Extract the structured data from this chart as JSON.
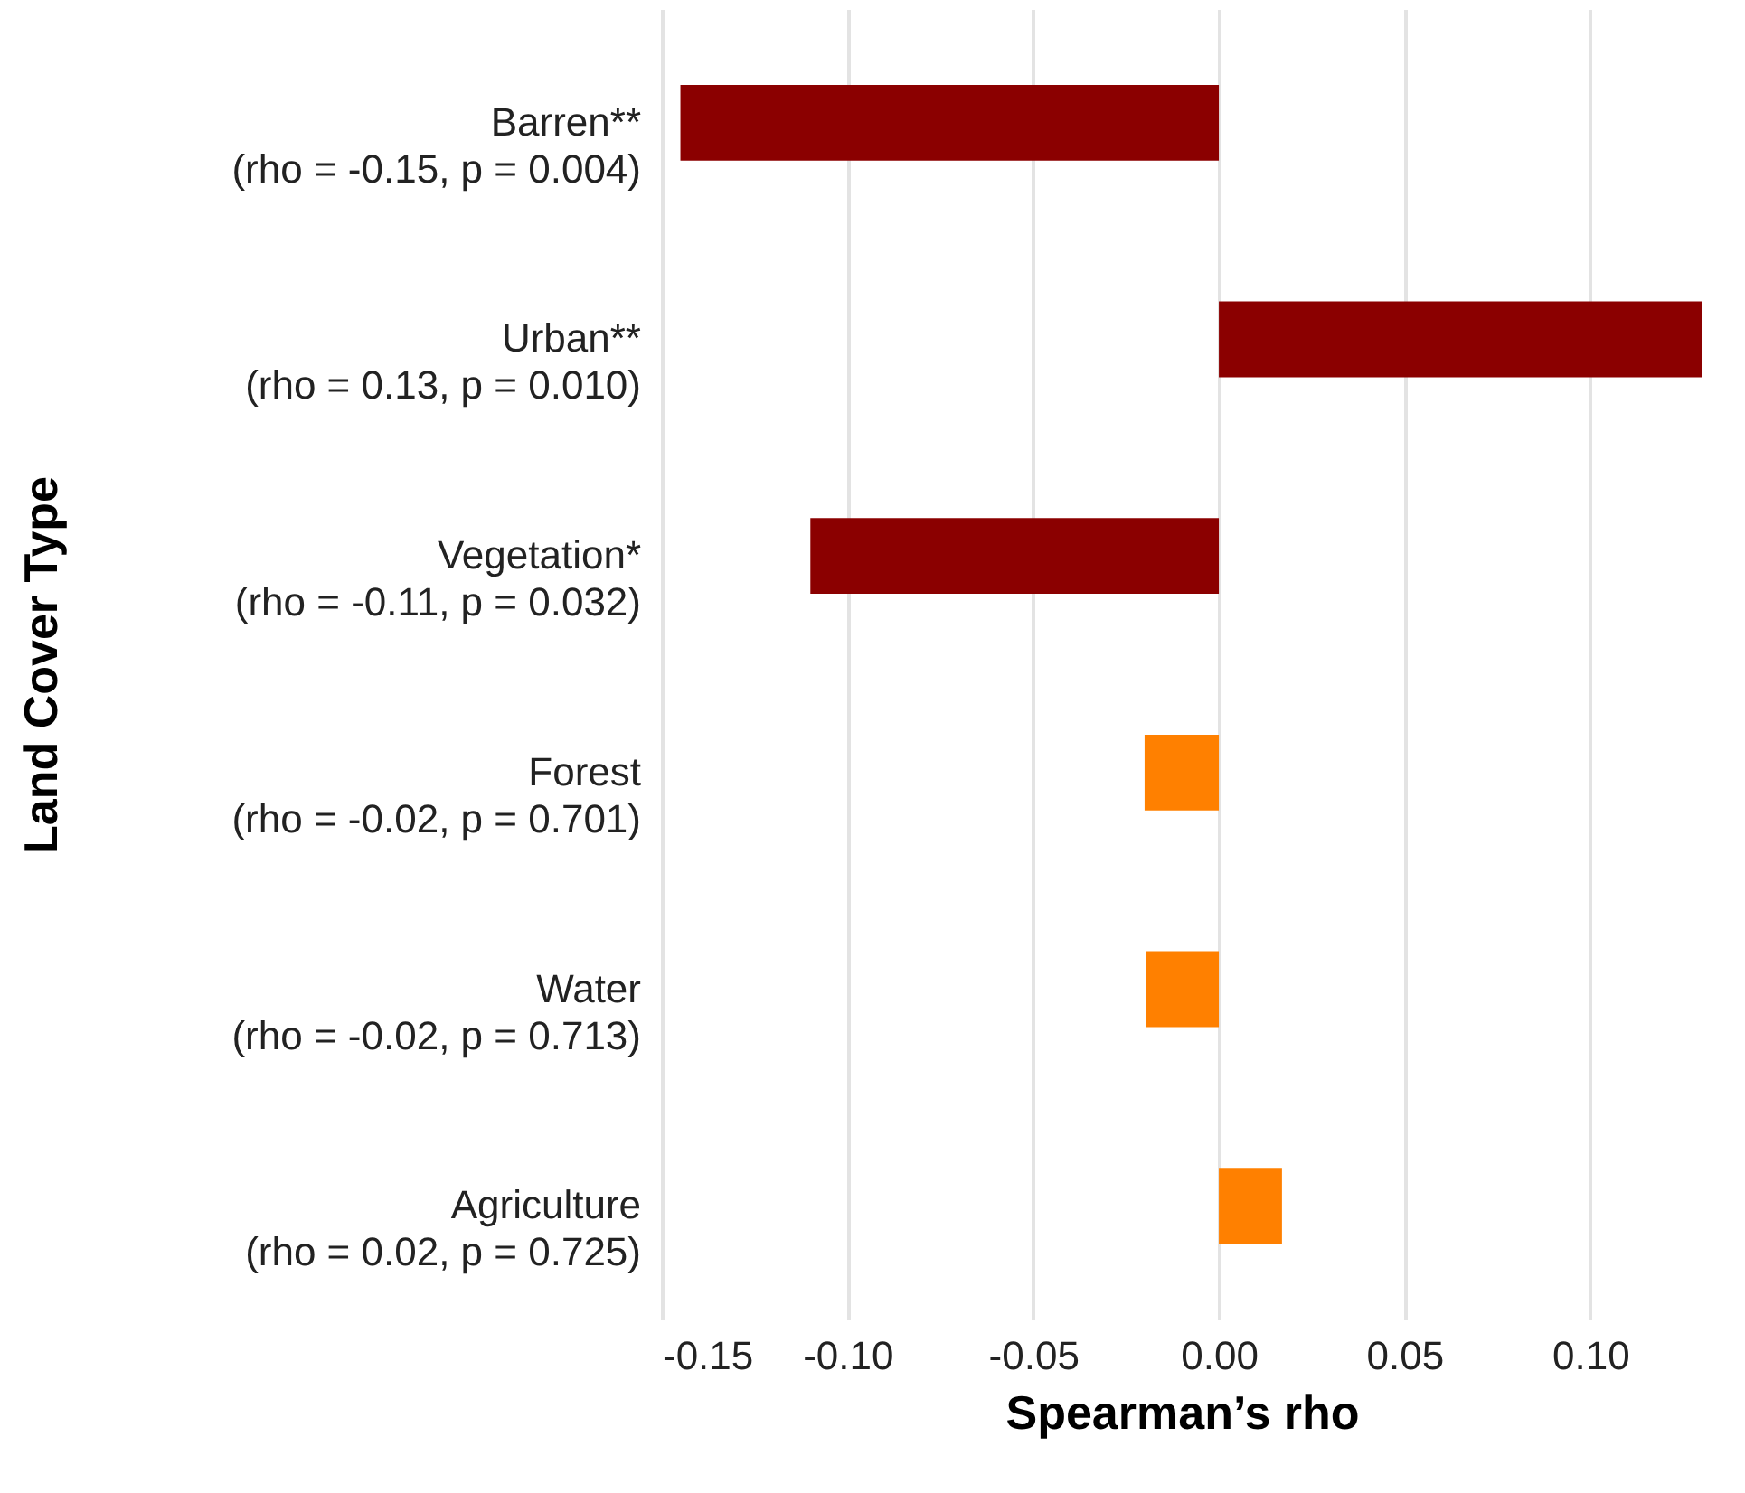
{
  "chart_data": {
    "type": "bar",
    "orientation": "horizontal",
    "xlabel": "Spearman’s rho",
    "ylabel": "Land Cover Type",
    "categories": [
      "Barren**\n(rho = -0.15, p = 0.004)",
      "Urban**\n(rho = 0.13, p = 0.010)",
      "Vegetation*\n(rho = -0.11, p = 0.032)",
      "Forest\n(rho = -0.02, p = 0.701)",
      "Water\n(rho = -0.02, p = 0.713)",
      "Agriculture\n(rho = 0.02, p = 0.725)"
    ],
    "values": [
      -0.145,
      0.13,
      -0.11,
      -0.02,
      -0.0195,
      0.017
    ],
    "colors": [
      "#8b0000",
      "#8b0000",
      "#8b0000",
      "#ff8000",
      "#ff8000",
      "#ff8000"
    ],
    "xlim": [
      -0.15,
      0.13
    ],
    "xticks": [
      {
        "value": -0.15,
        "label": "-0.15"
      },
      {
        "value": -0.1,
        "label": "-0.10"
      },
      {
        "value": -0.05,
        "label": "-0.05"
      },
      {
        "value": 0,
        "label": "0.00"
      },
      {
        "value": 0.05,
        "label": "0.05"
      },
      {
        "value": 0.1,
        "label": "0.10"
      }
    ],
    "grid": "x"
  }
}
